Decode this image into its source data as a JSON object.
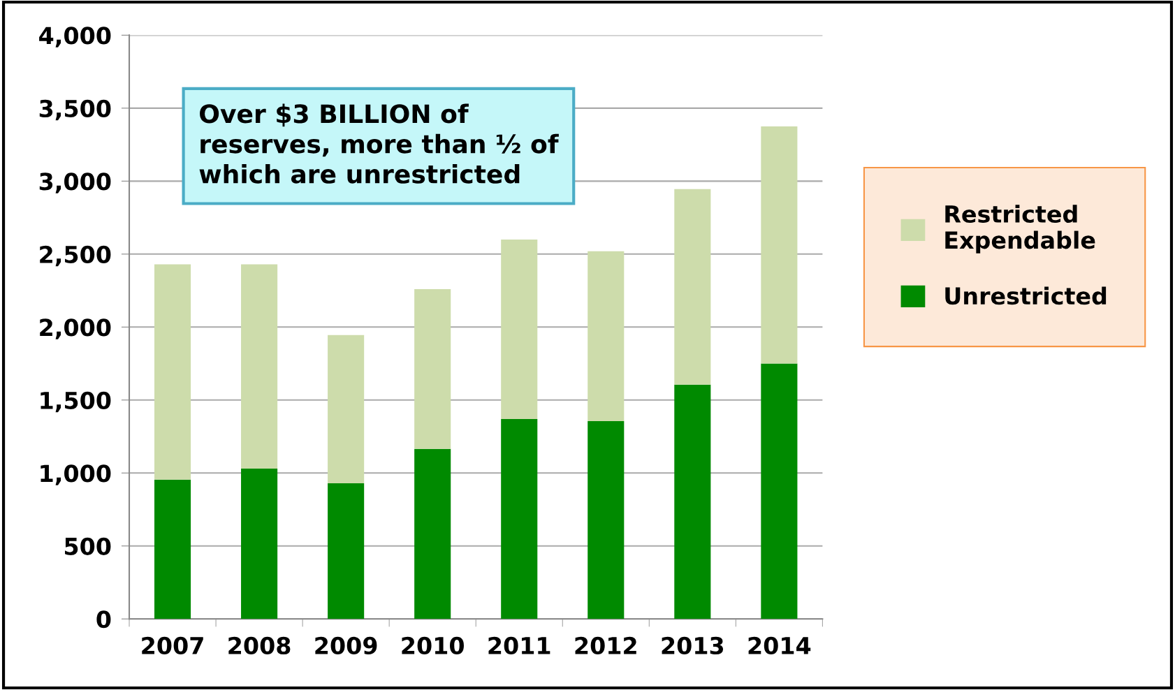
{
  "chart_data": {
    "type": "bar",
    "stacked": true,
    "categories": [
      "2007",
      "2008",
      "2009",
      "2010",
      "2011",
      "2012",
      "2013",
      "2014"
    ],
    "series": [
      {
        "name": "Unrestricted",
        "color": "#008a00",
        "values": [
          955,
          1030,
          930,
          1165,
          1370,
          1355,
          1605,
          1750
        ]
      },
      {
        "name": "Restricted\nExpendable",
        "color": "#cddcab",
        "values": [
          1475,
          1400,
          1015,
          1095,
          1230,
          1165,
          1340,
          1625
        ]
      }
    ],
    "ylim": [
      0,
      4000
    ],
    "yticks": [
      {
        "value": 0,
        "label": "0"
      },
      {
        "value": 500,
        "label": "500"
      },
      {
        "value": 1000,
        "label": "1,000"
      },
      {
        "value": 1500,
        "label": "1,500"
      },
      {
        "value": 2000,
        "label": "2,000"
      },
      {
        "value": 2500,
        "label": "2,500"
      },
      {
        "value": 3000,
        "label": "3,000"
      },
      {
        "value": 3500,
        "label": "3,500"
      },
      {
        "value": 4000,
        "label": "4,000"
      }
    ],
    "grid": "y",
    "legend": "right",
    "annotations": [
      "Over $3 BILLION of\nreserves, more than ½ of\nwhich are unrestricted"
    ]
  }
}
